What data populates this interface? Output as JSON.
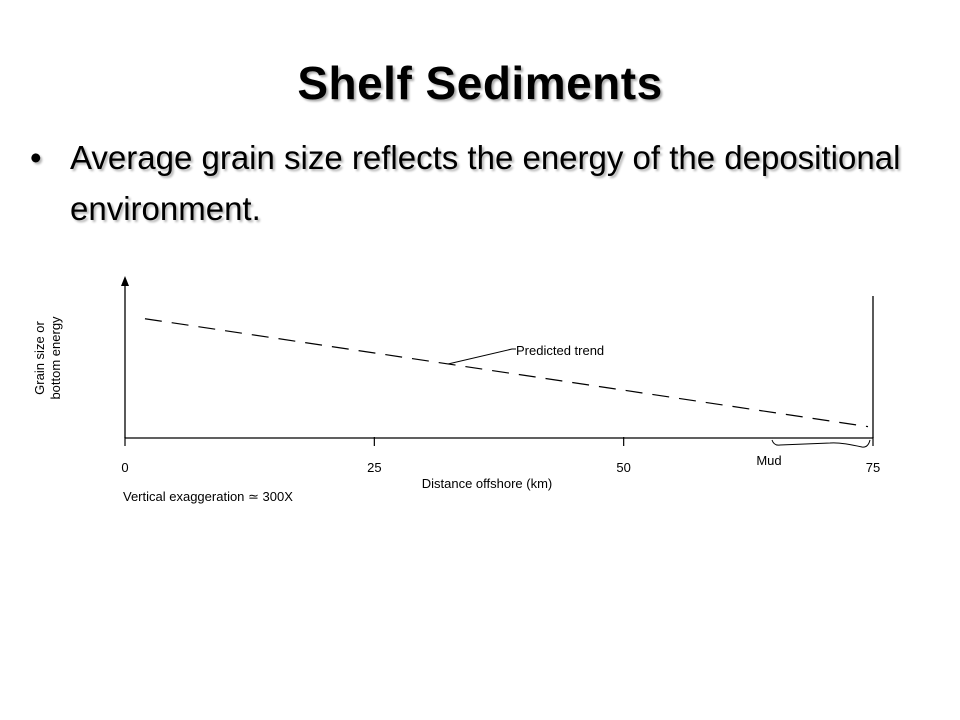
{
  "slide": {
    "title": "Shelf Sediments",
    "bullet_symbol": "•",
    "bullet": "Average grain size reflects the energy of the depositional environment."
  },
  "chart_data": {
    "type": "line",
    "title": "",
    "xlabel": "Distance offshore (km)",
    "ylabel_lines": [
      "Grain size or",
      "bottom energy"
    ],
    "x_ticks": [
      0,
      25,
      50,
      75
    ],
    "xlim": [
      0,
      75
    ],
    "ylim": [
      0,
      1
    ],
    "series": [
      {
        "name": "Predicted trend",
        "style": "dashed",
        "x": [
          2,
          74.5
        ],
        "y": [
          0.84,
          0.08
        ]
      }
    ],
    "annotations": [
      {
        "label": "Predicted trend",
        "x": 32.5,
        "y": 0.5
      },
      {
        "label": "Mud",
        "x_range": [
          65,
          75
        ]
      }
    ],
    "note": "Vertical exaggeration ≃ 300X"
  }
}
